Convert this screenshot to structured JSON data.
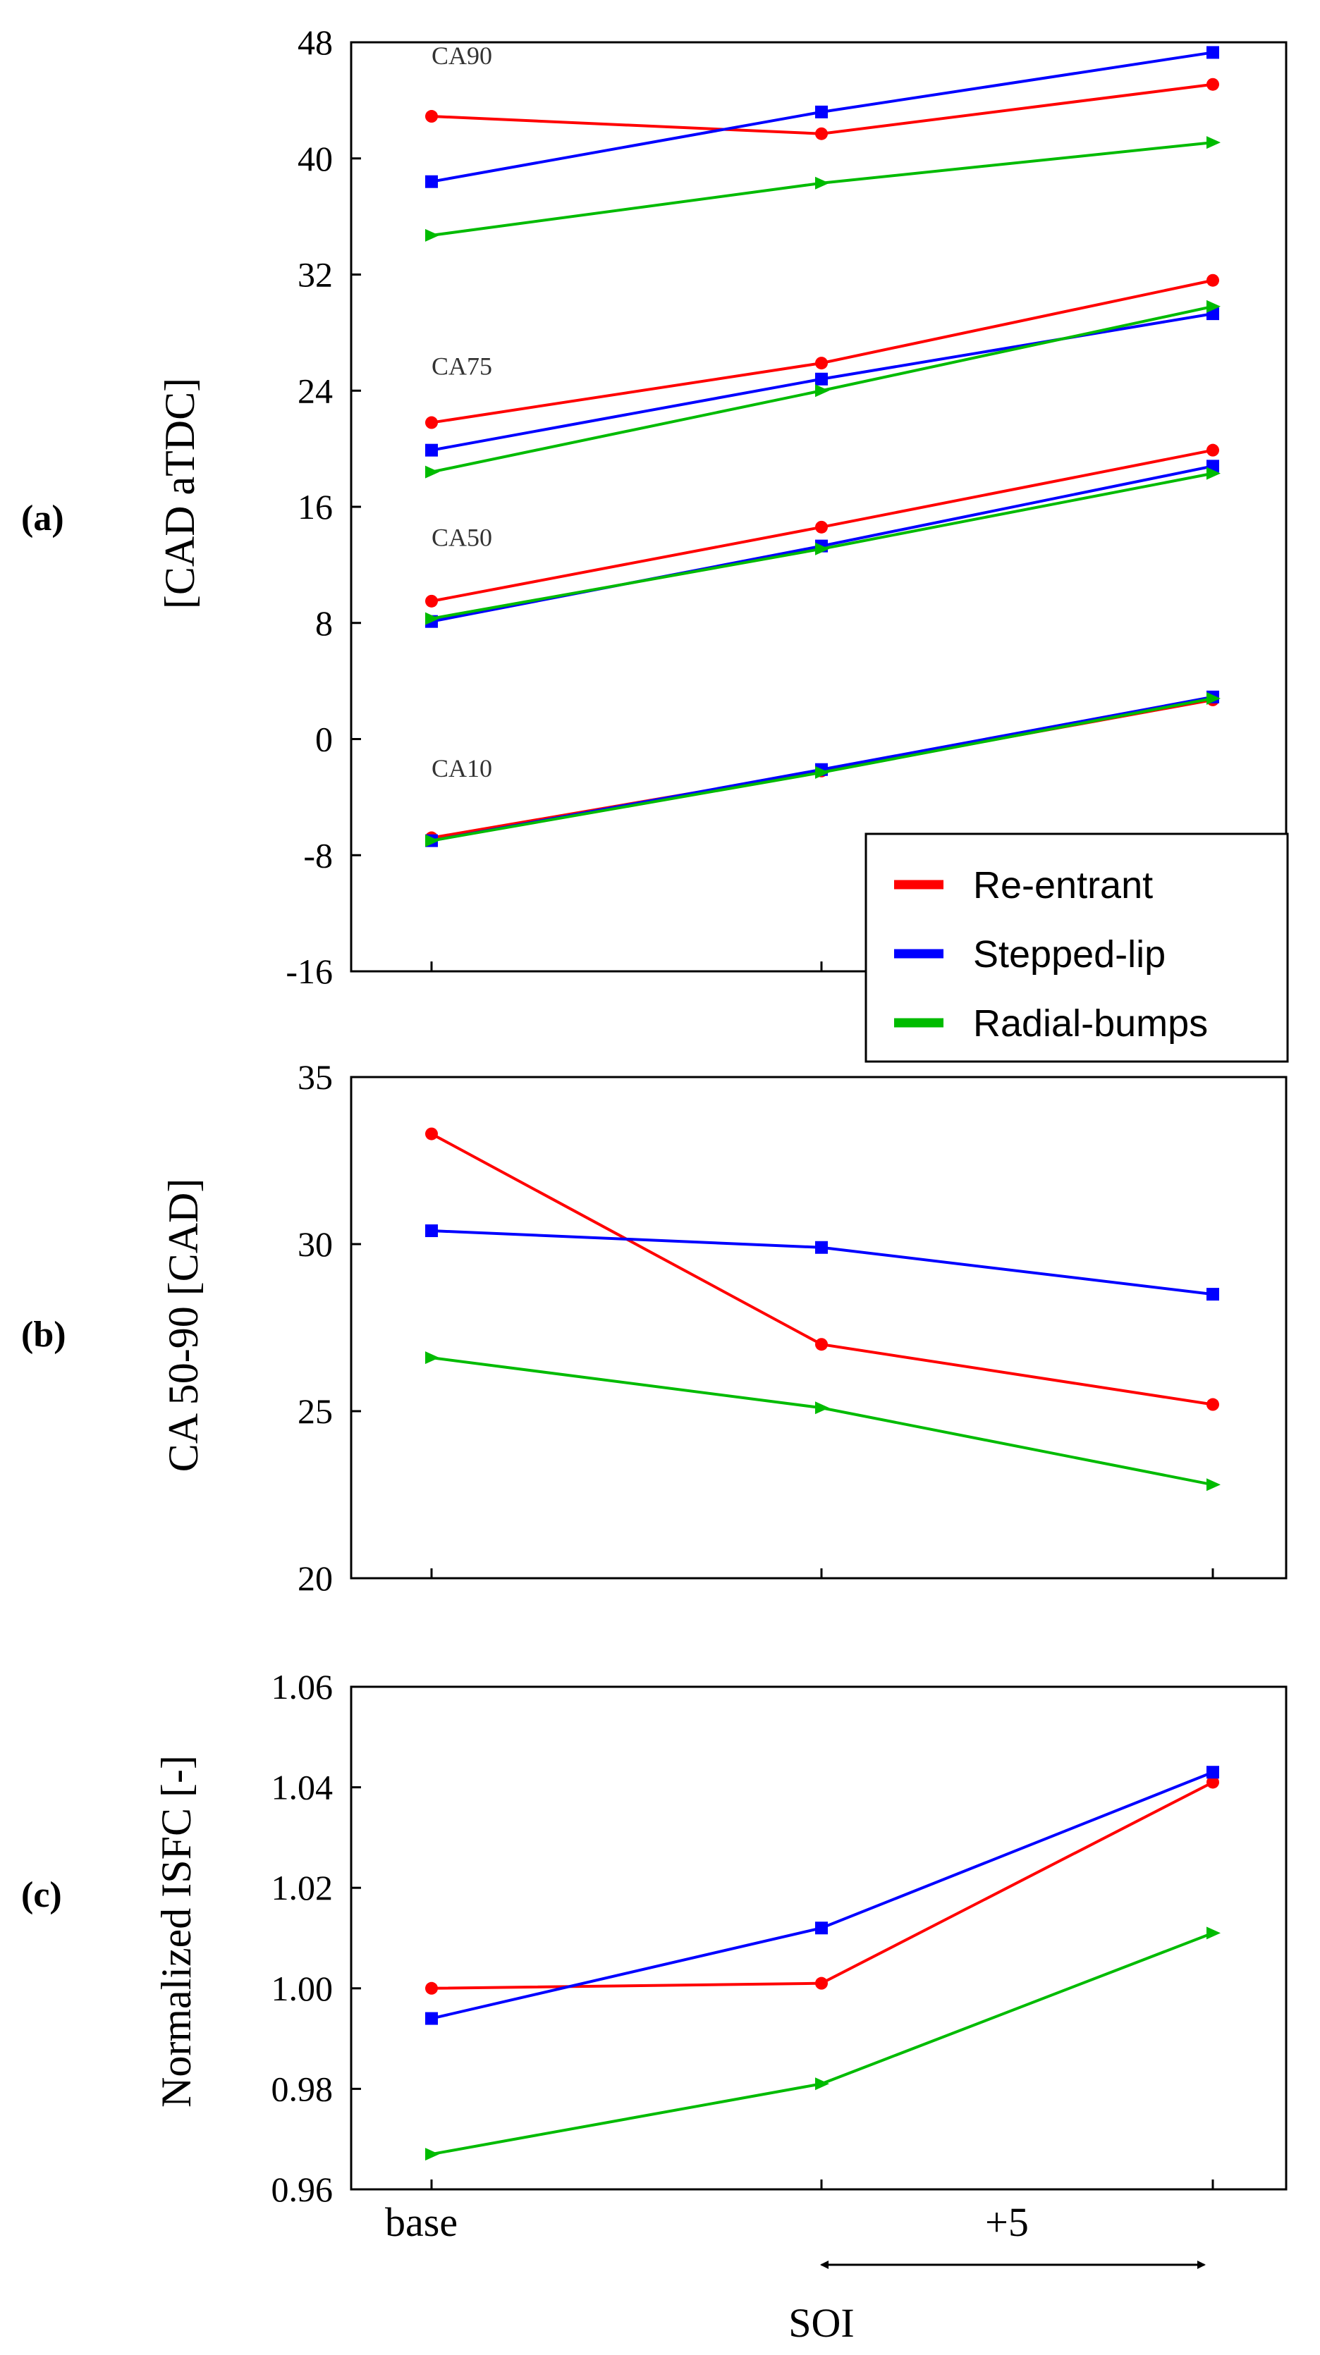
{
  "chart_data": [
    {
      "type": "line",
      "panel_label": "(a)",
      "ylabel": "[CAD aTDC]",
      "ylim": [
        -16,
        48
      ],
      "yticks": [
        -16,
        -8,
        0,
        8,
        16,
        24,
        32,
        40,
        48
      ],
      "ytick_labels": [
        "-16",
        "-8",
        "0",
        "8",
        "16",
        "24",
        "32",
        "40",
        "48"
      ],
      "x_positions": [
        0,
        5,
        10
      ],
      "annotations": [
        {
          "text": "CA90",
          "x": 0,
          "y": 46.5
        },
        {
          "text": "CA75",
          "x": 0,
          "y": 25.1
        },
        {
          "text": "CA50",
          "x": 0,
          "y": 13.3
        },
        {
          "text": "CA10",
          "x": 0,
          "y": -2.6
        }
      ],
      "series": [
        {
          "name": "Re-entrant CA90",
          "color": "#ff0000",
          "marker": "circle",
          "values": [
            42.9,
            41.7,
            45.1
          ]
        },
        {
          "name": "Stepped-lip CA90",
          "color": "#0000ff",
          "marker": "square",
          "values": [
            38.4,
            43.2,
            47.3
          ]
        },
        {
          "name": "Radial-bumps CA90",
          "color": "#00bb00",
          "marker": "triangle",
          "values": [
            34.7,
            38.3,
            41.1
          ]
        },
        {
          "name": "Re-entrant CA75",
          "color": "#ff0000",
          "marker": "circle",
          "values": [
            21.8,
            25.9,
            31.6
          ]
        },
        {
          "name": "Stepped-lip CA75",
          "color": "#0000ff",
          "marker": "square",
          "values": [
            19.9,
            24.8,
            29.3
          ]
        },
        {
          "name": "Radial-bumps CA75",
          "color": "#00bb00",
          "marker": "triangle",
          "values": [
            18.4,
            24.0,
            29.8
          ]
        },
        {
          "name": "Re-entrant CA50",
          "color": "#ff0000",
          "marker": "circle",
          "values": [
            9.5,
            14.6,
            19.9
          ]
        },
        {
          "name": "Stepped-lip CA50",
          "color": "#0000ff",
          "marker": "square",
          "values": [
            8.1,
            13.3,
            18.8
          ]
        },
        {
          "name": "Radial-bumps CA50",
          "color": "#00bb00",
          "marker": "triangle",
          "values": [
            8.3,
            13.1,
            18.3
          ]
        },
        {
          "name": "Re-entrant CA10",
          "color": "#ff0000",
          "marker": "circle",
          "values": [
            -6.8,
            -2.2,
            2.7
          ]
        },
        {
          "name": "Stepped-lip CA10",
          "color": "#0000ff",
          "marker": "square",
          "values": [
            -7.0,
            -2.1,
            2.9
          ]
        },
        {
          "name": "Radial-bumps CA10",
          "color": "#00bb00",
          "marker": "triangle",
          "values": [
            -7.0,
            -2.3,
            2.8
          ]
        }
      ],
      "legend": {
        "placement": "bottom-right",
        "entries": [
          {
            "label": "Re-entrant",
            "color": "#ff0000"
          },
          {
            "label": "Stepped-lip",
            "color": "#0000ff"
          },
          {
            "label": "Radial-bumps",
            "color": "#00bb00"
          }
        ]
      }
    },
    {
      "type": "line",
      "panel_label": "(b)",
      "ylabel": "CA 50-90 [CAD]",
      "ylim": [
        20,
        35
      ],
      "yticks": [
        20,
        25,
        30,
        35
      ],
      "ytick_labels": [
        "20",
        "25",
        "30",
        "35"
      ],
      "x_positions": [
        0,
        5,
        10
      ],
      "series": [
        {
          "name": "Re-entrant",
          "color": "#ff0000",
          "marker": "circle",
          "values": [
            33.3,
            27.0,
            25.2
          ]
        },
        {
          "name": "Stepped-lip",
          "color": "#0000ff",
          "marker": "square",
          "values": [
            30.4,
            29.9,
            28.5
          ]
        },
        {
          "name": "Radial-bumps",
          "color": "#00bb00",
          "marker": "triangle",
          "values": [
            26.6,
            25.1,
            22.8
          ]
        }
      ]
    },
    {
      "type": "line",
      "panel_label": "(c)",
      "ylabel": "Normalized ISFC [-]",
      "ylim": [
        0.96,
        1.06
      ],
      "yticks": [
        0.96,
        0.98,
        1.0,
        1.02,
        1.04,
        1.06
      ],
      "ytick_labels": [
        "0.96",
        "0.98",
        "1.00",
        "1.02",
        "1.04",
        "1.06"
      ],
      "x_positions": [
        0,
        5,
        10
      ],
      "series": [
        {
          "name": "Re-entrant",
          "color": "#ff0000",
          "marker": "circle",
          "values": [
            1.0,
            1.001,
            1.041
          ]
        },
        {
          "name": "Stepped-lip",
          "color": "#0000ff",
          "marker": "square",
          "values": [
            0.994,
            1.012,
            1.043
          ]
        },
        {
          "name": "Radial-bumps",
          "color": "#00bb00",
          "marker": "triangle",
          "values": [
            0.967,
            0.981,
            1.011
          ]
        }
      ],
      "x_tick_label": "base",
      "arrow_label": "+5",
      "xlabel": "SOI"
    }
  ]
}
